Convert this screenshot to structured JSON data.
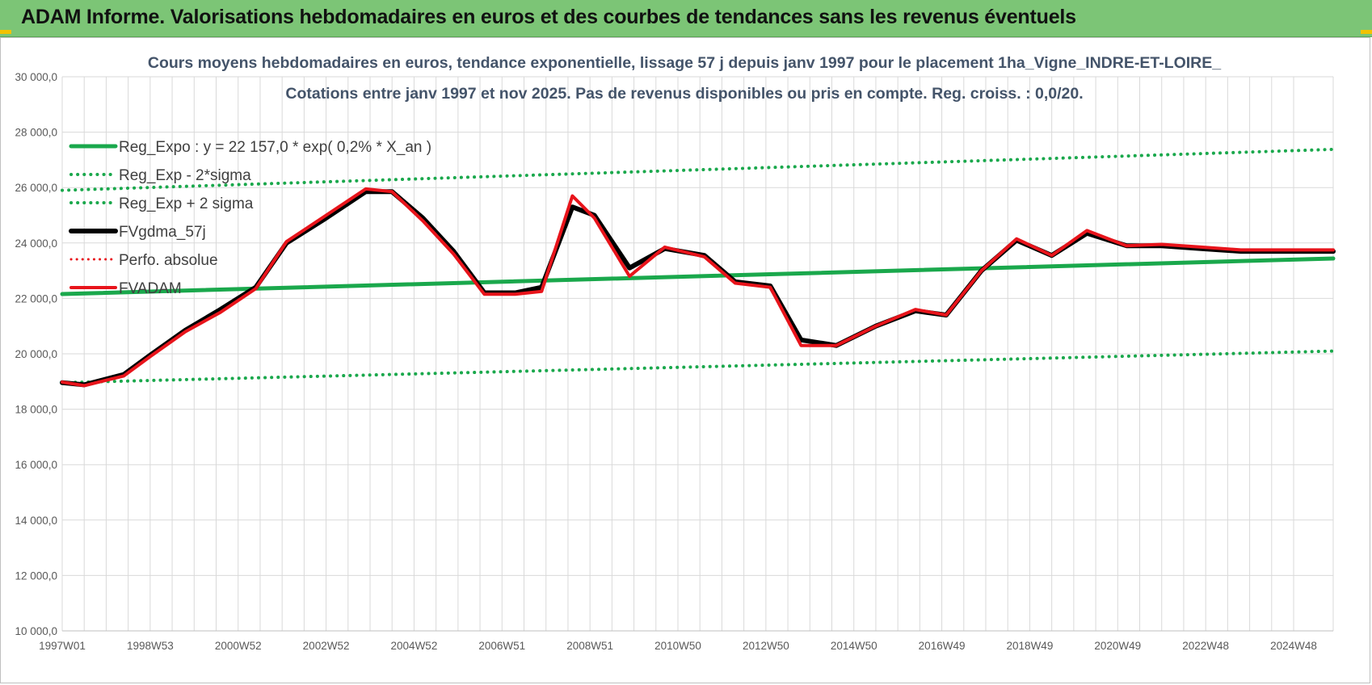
{
  "banner": {
    "title": "ADAM Informe. Valorisations hebdomadaires en euros et des courbes de tendances sans les revenus éventuels"
  },
  "colors": {
    "banner": "#7cc576",
    "reg_expo": "#1aa84c",
    "fv_gdma": "#000000",
    "fvadam": "#e8141b",
    "perfo": "#e8141b",
    "grid": "#d9d9d9"
  },
  "chart_data": {
    "type": "line",
    "title": "Cours moyens hebdomadaires en euros, tendance exponentielle, lissage 57 j depuis janv 1997 pour le placement 1ha_Vigne_INDRE-ET-LOIRE_",
    "subtitle": "Cotations entre janv 1997 et nov 2025. Pas de revenus disponibles ou pris en compte. Reg. croiss. : 0,0/20.",
    "xlabel": "",
    "ylabel": "",
    "ylim": [
      10000,
      30000
    ],
    "xlim": [
      1997.0,
      2025.9
    ],
    "y_ticks": [
      "10 000,0",
      "12 000,0",
      "14 000,0",
      "16 000,0",
      "18 000,0",
      "20 000,0",
      "22 000,0",
      "24 000,0",
      "26 000,0",
      "28 000,0",
      "30 000,0"
    ],
    "x_ticks": [
      {
        "label": "1997W01",
        "x": 1997.0
      },
      {
        "label": "1998W53",
        "x": 1999.0
      },
      {
        "label": "2000W52",
        "x": 2001.0
      },
      {
        "label": "2002W52",
        "x": 2003.0
      },
      {
        "label": "2004W52",
        "x": 2005.0
      },
      {
        "label": "2006W51",
        "x": 2007.0
      },
      {
        "label": "2008W51",
        "x": 2009.0
      },
      {
        "label": "2010W50",
        "x": 2011.0
      },
      {
        "label": "2012W50",
        "x": 2013.0
      },
      {
        "label": "2014W50",
        "x": 2015.0
      },
      {
        "label": "2016W49",
        "x": 2017.0
      },
      {
        "label": "2018W49",
        "x": 2019.0
      },
      {
        "label": "2020W49",
        "x": 2021.0
      },
      {
        "label": "2022W48",
        "x": 2023.0
      },
      {
        "label": "2024W48",
        "x": 2025.0
      }
    ],
    "grid": true,
    "legend_position": "top-left",
    "series": [
      {
        "name": "Reg_Expo : y = 22 157,0 * exp( 0,2% *  X_an )",
        "style": "solid-green",
        "x": [
          1997.0,
          2025.9
        ],
        "values": [
          22157,
          23440
        ]
      },
      {
        "name": "Reg_Exp - 2*sigma",
        "style": "dotted-green",
        "x": [
          1997.0,
          2025.9
        ],
        "values": [
          18960,
          20100
        ]
      },
      {
        "name": "Reg_Exp + 2 sigma",
        "style": "dotted-green",
        "x": [
          1997.0,
          2025.9
        ],
        "values": [
          25900,
          27380
        ]
      },
      {
        "name": "FVgdma_57j",
        "style": "solid-black",
        "x": [
          1997.0,
          1997.5,
          1998.4,
          1999.0,
          1999.8,
          2000.6,
          2001.4,
          2002.1,
          2003.0,
          2003.9,
          2004.5,
          2005.2,
          2005.9,
          2006.6,
          2007.3,
          2007.9,
          2008.6,
          2009.1,
          2009.9,
          2010.7,
          2011.6,
          2012.3,
          2013.1,
          2013.8,
          2014.6,
          2015.5,
          2016.4,
          2017.1,
          2017.9,
          2018.7,
          2019.5,
          2020.3,
          2021.2,
          2022.0,
          2022.9,
          2023.8,
          2024.6,
          2025.2,
          2025.9
        ],
        "values": [
          18960,
          18880,
          19250,
          19950,
          20850,
          21600,
          22400,
          24000,
          24900,
          25850,
          25850,
          24900,
          23700,
          22200,
          22200,
          22400,
          25300,
          25000,
          23100,
          23800,
          23550,
          22600,
          22450,
          20500,
          20300,
          21000,
          21550,
          21400,
          23000,
          24100,
          23550,
          24350,
          23900,
          23900,
          23800,
          23700,
          23700,
          23700,
          23700
        ]
      },
      {
        "name": "Perfo. absolue",
        "style": "dotted-red",
        "x": [],
        "values": []
      },
      {
        "name": "FVADAM",
        "style": "solid-red",
        "x": [
          1997.0,
          1997.5,
          1998.4,
          1999.0,
          1999.8,
          2000.6,
          2001.4,
          2002.1,
          2003.0,
          2003.9,
          2004.5,
          2005.2,
          2005.9,
          2006.6,
          2007.3,
          2007.9,
          2008.6,
          2009.1,
          2009.9,
          2010.7,
          2011.6,
          2012.3,
          2013.1,
          2013.8,
          2014.6,
          2015.5,
          2016.4,
          2017.1,
          2017.9,
          2018.7,
          2019.5,
          2020.3,
          2021.2,
          2022.0,
          2022.9,
          2023.8,
          2024.6,
          2025.2,
          2025.9
        ],
        "values": [
          18980,
          18850,
          19200,
          19900,
          20800,
          21500,
          22350,
          24050,
          25000,
          25950,
          25850,
          24800,
          23600,
          22150,
          22150,
          22250,
          25700,
          24900,
          22800,
          23850,
          23500,
          22550,
          22400,
          20300,
          20300,
          21000,
          21600,
          21400,
          23000,
          24150,
          23550,
          24450,
          23900,
          23950,
          23850,
          23750,
          23750,
          23750,
          23750
        ]
      }
    ]
  }
}
